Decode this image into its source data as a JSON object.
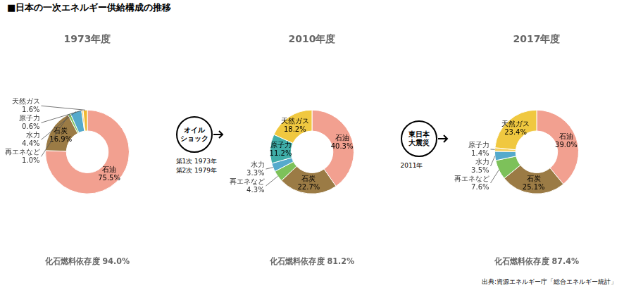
{
  "title": "■日本の一次エネルギー供給構成の推移",
  "annotations": [
    "出典:資源エネルギー庁「総合エネルギー統計」",
    "オイル\nショック",
    "第1次 1973年\n第2次 1979年",
    "東日本\n大震災",
    "2011年"
  ],
  "chart_data": [
    {
      "type": "doughnut",
      "title": "1973年度",
      "subtitle": "化石燃料依存度 94.0%",
      "categories": [
        "石油",
        "石炭",
        "再エネなど",
        "水力",
        "原子力",
        "天然ガス"
      ],
      "values": [
        75.5,
        16.9,
        1.0,
        4.4,
        0.6,
        1.6
      ],
      "value_labels": [
        "75.5%",
        "16.9%",
        "1.0%",
        "4.4%",
        "0.6%",
        "1.6%"
      ],
      "colors": [
        "#F2A090",
        "#9B7B45",
        "#7DC15A",
        "#55AACC",
        "#F5D060",
        "#F0B830"
      ],
      "data_labels": true
    },
    {
      "type": "doughnut",
      "title": "2010年度",
      "subtitle": "化石燃料依存度 81.2%",
      "categories": [
        "石油",
        "石炭",
        "再エネなど",
        "水力",
        "原子力",
        "天然ガス"
      ],
      "values": [
        40.3,
        22.7,
        4.3,
        3.3,
        11.2,
        18.2
      ],
      "value_labels": [
        "40.3%",
        "22.7%",
        "4.3%",
        "3.3%",
        "11.2%",
        "18.2%"
      ],
      "colors": [
        "#F2A090",
        "#9B7B45",
        "#7DC15A",
        "#55AACC",
        "#3FADA8",
        "#F0C840"
      ],
      "data_labels": true
    },
    {
      "type": "doughnut",
      "title": "2017年度",
      "subtitle": "化石燃料依存度 87.4%",
      "categories": [
        "石油",
        "石炭",
        "再エネなど",
        "水力",
        "原子力",
        "天然ガス"
      ],
      "values": [
        39.0,
        25.1,
        7.6,
        3.5,
        1.4,
        23.4
      ],
      "value_labels": [
        "39.0%",
        "25.1%",
        "7.6%",
        "3.5%",
        "1.4%",
        "23.4%"
      ],
      "colors": [
        "#F2A090",
        "#9B7B45",
        "#7DC15A",
        "#55AACC",
        "#F5D060",
        "#F0C840"
      ],
      "data_labels": true
    }
  ]
}
